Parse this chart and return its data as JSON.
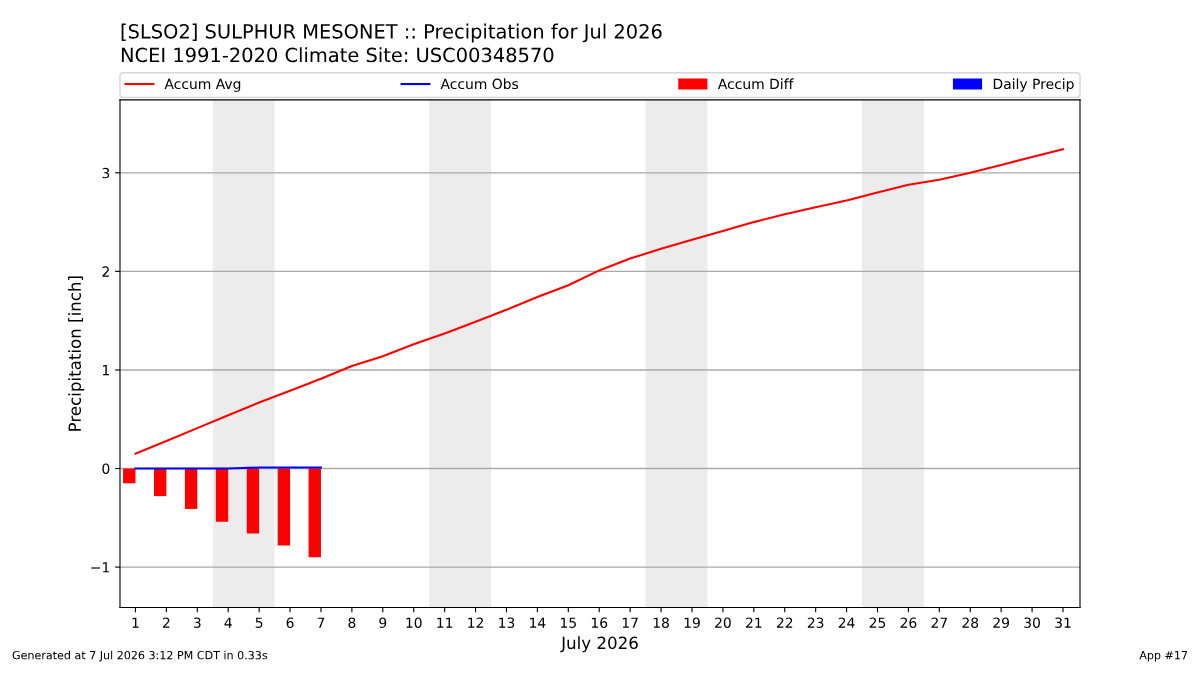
{
  "chart_data": {
    "type": "line",
    "title": "[SLSO2] SULPHUR MESONET :: Precipitation for Jul 2026",
    "subtitle": "NCEI 1991-2020 Climate Site: USC00348570",
    "xlabel": "July 2026",
    "ylabel": "Precipitation [inch]",
    "x": [
      1,
      2,
      3,
      4,
      5,
      6,
      7,
      8,
      9,
      10,
      11,
      12,
      13,
      14,
      15,
      16,
      17,
      18,
      19,
      20,
      21,
      22,
      23,
      24,
      25,
      26,
      27,
      28,
      29,
      30,
      31
    ],
    "series": [
      {
        "name": "Accum Avg",
        "color": "#ff0000",
        "values": [
          0.15,
          0.28,
          0.41,
          0.54,
          0.67,
          0.79,
          0.91,
          1.04,
          1.14,
          1.26,
          1.37,
          1.49,
          1.61,
          1.74,
          1.86,
          2.01,
          2.13,
          2.23,
          2.32,
          2.41,
          2.5,
          2.58,
          2.65,
          2.72,
          2.8,
          2.88,
          2.93,
          3.0,
          3.08,
          3.16,
          3.24
        ]
      },
      {
        "name": "Accum Obs",
        "color": "#0000ff",
        "x": [
          1,
          2,
          3,
          4,
          5,
          6,
          7
        ],
        "values": [
          0,
          0,
          0,
          0,
          0.01,
          0.01,
          0.01
        ]
      },
      {
        "name": "Accum Diff",
        "type": "bar",
        "color": "#ff0000",
        "x": [
          1,
          2,
          3,
          4,
          5,
          6,
          7
        ],
        "values": [
          -0.15,
          -0.28,
          -0.41,
          -0.54,
          -0.66,
          -0.78,
          -0.9
        ]
      },
      {
        "name": "Daily Precip",
        "type": "bar",
        "color": "#0000ff",
        "x": [
          1,
          2,
          3,
          4,
          5,
          6,
          7
        ],
        "values": [
          0,
          0,
          0,
          0,
          null,
          0,
          0
        ]
      }
    ],
    "bands": [
      {
        "axis": "x",
        "from": 3.5,
        "to": 5.5,
        "color": "#ececec"
      },
      {
        "axis": "x",
        "from": 10.5,
        "to": 12.5,
        "color": "#ececec"
      },
      {
        "axis": "x",
        "from": 17.5,
        "to": 19.5,
        "color": "#ececec"
      },
      {
        "axis": "x",
        "from": 24.5,
        "to": 26.5,
        "color": "#ececec"
      }
    ],
    "xlim": [
      0.5,
      31.55
    ],
    "xticks": [
      1,
      2,
      3,
      4,
      5,
      6,
      7,
      8,
      9,
      10,
      11,
      12,
      13,
      14,
      15,
      16,
      17,
      18,
      19,
      20,
      21,
      22,
      23,
      24,
      25,
      26,
      27,
      28,
      29,
      30,
      31
    ],
    "ylim": [
      -1.41,
      3.74
    ],
    "yticks": [
      {
        "value": -1,
        "label": "−1"
      },
      0,
      1,
      2,
      3
    ],
    "grid": "y",
    "legend": "top",
    "annotations": [
      "Generated at 7 Jul 2026 3:12 PM CDT in 0.33s",
      "App #17"
    ]
  }
}
